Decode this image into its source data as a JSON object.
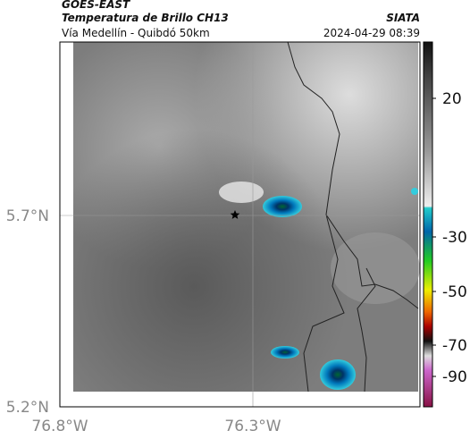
{
  "header": {
    "source": "GOES-EAST",
    "title": "Temperatura de Brillo CH13",
    "route": "Vía Medellín - Quibdó 50km",
    "agency": "SIATA",
    "timestamp": "2024-04-29 08:39"
  },
  "map": {
    "lat_labels": [
      "5.7°N",
      "5.2°N"
    ],
    "lon_labels": [
      "76.8°W",
      "76.3°W"
    ]
  },
  "colorbar": {
    "ticks": [
      20,
      -30,
      -50,
      -70,
      -90
    ]
  }
}
